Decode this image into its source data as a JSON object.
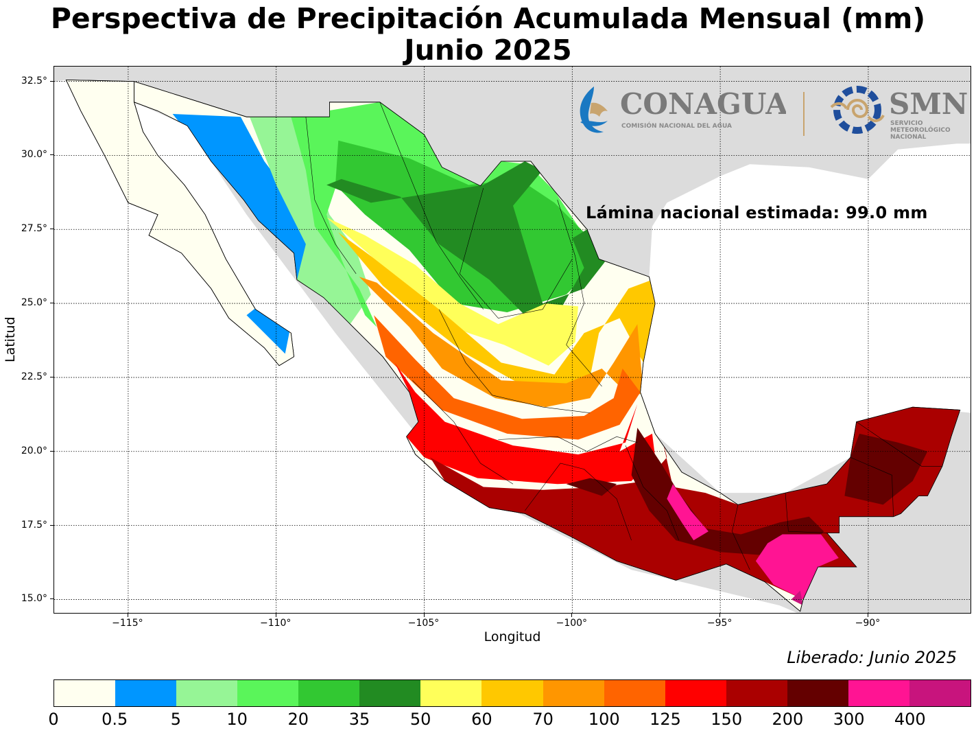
{
  "title": {
    "line1": "Perspectiva de Precipitación Acumulada Mensual (mm)",
    "line2": "Junio 2025"
  },
  "axes": {
    "xlabel": "Longitud",
    "ylabel": "Latitud",
    "lon_range": [
      -117.5,
      -86.5
    ],
    "lat_range": [
      14.5,
      33.0
    ],
    "lon_ticks": [
      {
        "value": -115,
        "label": "−115°"
      },
      {
        "value": -110,
        "label": "−110°"
      },
      {
        "value": -105,
        "label": "−105°"
      },
      {
        "value": -100,
        "label": "−100°"
      },
      {
        "value": -95,
        "label": "−95°"
      },
      {
        "value": -90,
        "label": "−90°"
      }
    ],
    "lat_ticks": [
      {
        "value": 32.5,
        "label": "32.5°"
      },
      {
        "value": 30.0,
        "label": "30.0°"
      },
      {
        "value": 27.5,
        "label": "27.5°"
      },
      {
        "value": 25.0,
        "label": "25.0°"
      },
      {
        "value": 22.5,
        "label": "22.5°"
      },
      {
        "value": 20.0,
        "label": "20.0°"
      },
      {
        "value": 17.5,
        "label": "17.5°"
      },
      {
        "value": 15.0,
        "label": "15.0°"
      }
    ],
    "grid": "dotted"
  },
  "annotation": {
    "national": "Lámina nacional estimada: 99.0 mm",
    "released": "Liberado: Junio 2025"
  },
  "logos": {
    "conagua_name": "CONAGUA",
    "conagua_sub": "COMISIÓN NACIONAL DEL AGUA",
    "smn_name": "SMN",
    "smn_sub1": "SERVICIO",
    "smn_sub2": "METEOROLÓGICO",
    "smn_sub3": "NACIONAL"
  },
  "colors": {
    "land_outside": "#dcdcdc",
    "water": "#ffffff",
    "bins": [
      "#fffff0",
      "#0096ff",
      "#96f596",
      "#5af55a",
      "#32c832",
      "#228b22",
      "#ffff5a",
      "#ffc800",
      "#ff9600",
      "#ff6400",
      "#ff0000",
      "#aa0000",
      "#640000",
      "#ff1493",
      "#c8147d"
    ]
  },
  "colorbar": {
    "labels": [
      "0",
      "0.5",
      "5",
      "10",
      "20",
      "35",
      "50",
      "60",
      "70",
      "100",
      "125",
      "150",
      "200",
      "300",
      "400"
    ]
  }
}
